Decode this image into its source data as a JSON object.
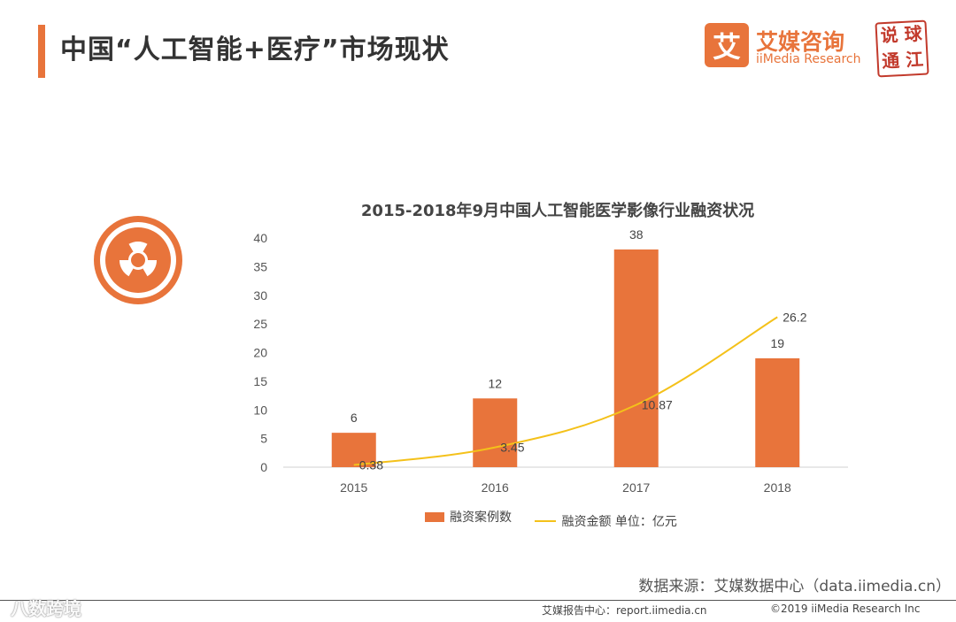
{
  "page": {
    "title": "中国“人工智能+医疗”市场现状"
  },
  "brand": {
    "name_cn": "艾媒咨询",
    "name_en": "iiMedia Research",
    "logo_glyph": "艾",
    "seal_chars": [
      "说",
      "球",
      "通",
      "江"
    ]
  },
  "colors": {
    "accent": "#e8743b",
    "line": "#f4c11a"
  },
  "chart_data": {
    "type": "bar",
    "title": "2015-2018年9月中国人工智能医学影像行业融资状况",
    "categories": [
      "2015",
      "2016",
      "2017",
      "2018"
    ],
    "ylim": [
      0,
      40
    ],
    "yticks": [
      0,
      5,
      10,
      15,
      20,
      25,
      30,
      35,
      40
    ],
    "series": [
      {
        "name": "融资案例数",
        "kind": "bar",
        "values": [
          6,
          12,
          38,
          19
        ],
        "labels": [
          "6",
          "12",
          "38",
          "19"
        ]
      },
      {
        "name": "融资金额 单位：亿元",
        "kind": "line",
        "values": [
          0.38,
          3.45,
          10.87,
          26.2
        ],
        "labels": [
          "0.38",
          "3.45",
          "10.87",
          "26.2"
        ]
      }
    ],
    "legend_position": "bottom"
  },
  "source": {
    "text": "数据来源：艾媒数据中心（data.iimedia.cn）"
  },
  "footer": {
    "report": "艾媒报告中心：report.iimedia.cn",
    "copyright": "©2019  iiMedia Research Inc"
  },
  "watermark": {
    "text": "八数跨境"
  }
}
